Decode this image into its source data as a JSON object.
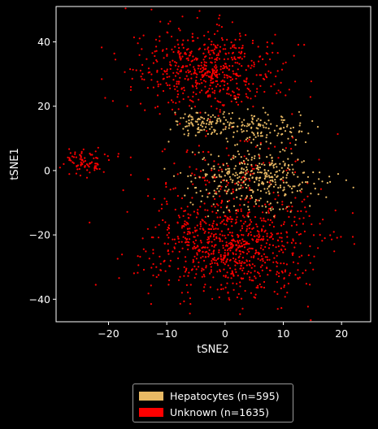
{
  "chart_data": {
    "type": "scatter",
    "xlabel": "tSNE2",
    "ylabel": "tSNE1",
    "xlim": [
      -29,
      25
    ],
    "ylim": [
      -47,
      51
    ],
    "xticks": [
      -20,
      -10,
      0,
      10,
      20
    ],
    "yticks": [
      -40,
      -20,
      0,
      20,
      40
    ],
    "background": "#000000",
    "grid": false,
    "legend_position": "bottom-center, below plot",
    "series": [
      {
        "name": "Hepatocytes (n=595)",
        "color": "#E8B964",
        "n": 595,
        "clusters": [
          {
            "cx": 5,
            "cy": -2,
            "sx": 5.5,
            "sy": 5,
            "weight": 0.62
          },
          {
            "cx": -4,
            "cy": 15,
            "sx": 2.5,
            "sy": 2,
            "weight": 0.17
          },
          {
            "cx": 6,
            "cy": 14,
            "sx": 4,
            "sy": 2.5,
            "weight": 0.21
          }
        ]
      },
      {
        "name": "Unknown (n=1635)",
        "color": "#FF0000",
        "n": 1635,
        "clusters": [
          {
            "cx": -3,
            "cy": 31,
            "sx": 6,
            "sy": 6,
            "weight": 0.36
          },
          {
            "cx": 1,
            "cy": -23,
            "sx": 7,
            "sy": 8,
            "weight": 0.52
          },
          {
            "cx": 2,
            "cy": 0,
            "sx": 9,
            "sy": 6,
            "weight": 0.07
          },
          {
            "cx": -24.5,
            "cy": 3,
            "sx": 1.8,
            "sy": 2,
            "weight": 0.05
          }
        ]
      }
    ]
  },
  "legend": {
    "items": [
      {
        "label": "Hepatocytes (n=595)",
        "color": "#E8B964"
      },
      {
        "label": "Unknown (n=1635)",
        "color": "#FF0000"
      }
    ]
  }
}
